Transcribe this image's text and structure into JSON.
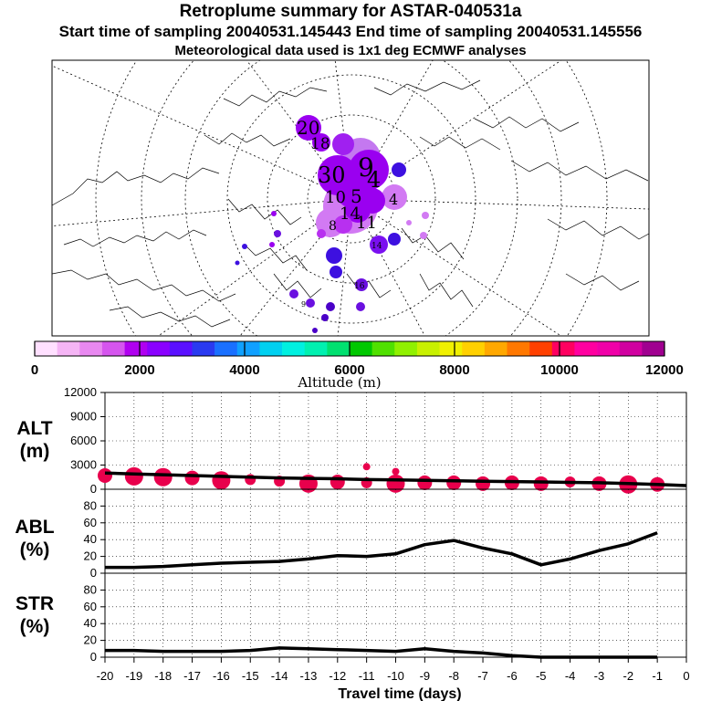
{
  "header": {
    "title": "Retroplume summary for ASTAR-040531a",
    "times": "Start time of sampling 20040531.145443     End time of sampling 20040531.145556",
    "met": "Meteorological data used is 1x1 deg ECMWF analyses"
  },
  "colorbar": {
    "label": "Altitude  (m)",
    "tick_labels": [
      "0",
      "2000",
      "4000",
      "6000",
      "8000",
      "10000",
      "12000"
    ],
    "colors": [
      "#ffe0ff",
      "#f5b5f5",
      "#e888f0",
      "#d555ee",
      "#b000f0",
      "#8a00ff",
      "#5a10ff",
      "#2a3af0",
      "#1a70ff",
      "#10a0ff",
      "#00d0f0",
      "#00f0e0",
      "#00f0b0",
      "#00e070",
      "#00c800",
      "#50e000",
      "#90f000",
      "#c8f000",
      "#f0f000",
      "#ffd000",
      "#ffa800",
      "#ff7800",
      "#ff4000",
      "#ff0060",
      "#ff00a0",
      "#f000a8",
      "#d000a0",
      "#a00090"
    ]
  },
  "map": {
    "plume_labels": [
      "20",
      "18",
      "9",
      "30",
      "4",
      "5",
      "10",
      "4",
      "14",
      "8",
      "14",
      "16",
      "11",
      "9"
    ],
    "colors": {
      "deep": "#9a00f0",
      "mid": "#b830f0",
      "light": "#d27af3",
      "blue": "#3d10e0",
      "dark": "#4a00c8"
    }
  },
  "panels": {
    "alt": {
      "label_top": "ALT",
      "label_bottom": "(m)"
    },
    "abl": {
      "label_top": "ABL",
      "label_bottom": "(%)"
    },
    "str": {
      "label_top": "STR",
      "label_bottom": "(%)"
    }
  },
  "xaxis": {
    "title": "Travel time (days)",
    "tick_labels": [
      "-20",
      "-19",
      "-18",
      "-17",
      "-16",
      "-15",
      "-14",
      "-13",
      "-12",
      "-11",
      "-10",
      "-9",
      "-8",
      "-7",
      "-6",
      "-5",
      "-4",
      "-3",
      "-2",
      "-1",
      "0"
    ]
  },
  "chart_data": [
    {
      "type": "line",
      "title": "ALT",
      "ylabel": "ALT (m)",
      "xlabel": "Travel time (days)",
      "ylim": [
        0,
        12000
      ],
      "yticks": [
        0,
        3000,
        6000,
        9000,
        12000
      ],
      "x": [
        -20,
        -19,
        -18,
        -17,
        -16,
        -15,
        -14,
        -13,
        -12,
        -11,
        -10,
        -9,
        -8,
        -7,
        -6,
        -5,
        -4,
        -3,
        -2,
        -1,
        0
      ],
      "values": [
        2000,
        1900,
        1800,
        1700,
        1600,
        1500,
        1400,
        1350,
        1300,
        1200,
        1150,
        1100,
        1050,
        1000,
        950,
        900,
        850,
        800,
        700,
        600,
        450
      ],
      "marker_color": "#e8004c",
      "markers": [
        {
          "x": -20,
          "y": 1700,
          "s": 3
        },
        {
          "x": -19,
          "y": 1600,
          "s": 4
        },
        {
          "x": -18,
          "y": 1500,
          "s": 4
        },
        {
          "x": -17,
          "y": 1400,
          "s": 3
        },
        {
          "x": -16,
          "y": 1100,
          "s": 4
        },
        {
          "x": -15,
          "y": 1200,
          "s": 2
        },
        {
          "x": -14,
          "y": 1000,
          "s": 2
        },
        {
          "x": -13,
          "y": 700,
          "s": 4
        },
        {
          "x": -12,
          "y": 900,
          "s": 3
        },
        {
          "x": -11,
          "y": 800,
          "s": 2
        },
        {
          "x": -11,
          "y": 2800,
          "s": 1
        },
        {
          "x": -10,
          "y": 700,
          "s": 4
        },
        {
          "x": -10,
          "y": 2200,
          "s": 1
        },
        {
          "x": -9,
          "y": 800,
          "s": 3
        },
        {
          "x": -8,
          "y": 800,
          "s": 3
        },
        {
          "x": -7,
          "y": 700,
          "s": 3
        },
        {
          "x": -6,
          "y": 800,
          "s": 3
        },
        {
          "x": -5,
          "y": 700,
          "s": 3
        },
        {
          "x": -4,
          "y": 900,
          "s": 2
        },
        {
          "x": -3,
          "y": 700,
          "s": 3
        },
        {
          "x": -2,
          "y": 600,
          "s": 4
        },
        {
          "x": -1,
          "y": 600,
          "s": 3
        }
      ]
    },
    {
      "type": "line",
      "title": "ABL",
      "ylabel": "ABL (%)",
      "xlabel": "Travel time (days)",
      "ylim": [
        0,
        100
      ],
      "yticks": [
        0,
        20,
        40,
        60,
        80
      ],
      "x": [
        -20,
        -19,
        -18,
        -17,
        -16,
        -15,
        -14,
        -13,
        -12,
        -11,
        -10,
        -9,
        -8,
        -7,
        -6,
        -5,
        -4,
        -3,
        -2,
        -1
      ],
      "values": [
        7,
        7,
        8,
        10,
        12,
        13,
        14,
        17,
        21,
        20,
        23,
        34,
        39,
        30,
        23,
        10,
        17,
        27,
        35,
        48
      ]
    },
    {
      "type": "line",
      "title": "STR",
      "ylabel": "STR (%)",
      "xlabel": "Travel time (days)",
      "ylim": [
        0,
        100
      ],
      "yticks": [
        0,
        20,
        40,
        60,
        80
      ],
      "x": [
        -20,
        -19,
        -18,
        -17,
        -16,
        -15,
        -14,
        -13,
        -12,
        -11,
        -10,
        -9,
        -8,
        -7,
        -6,
        -5,
        -4,
        -3,
        -2,
        -1
      ],
      "values": [
        8,
        8,
        7,
        7,
        7,
        8,
        11,
        10,
        9,
        8,
        7,
        10,
        7,
        5,
        2,
        0,
        0,
        0,
        0,
        0
      ]
    }
  ]
}
